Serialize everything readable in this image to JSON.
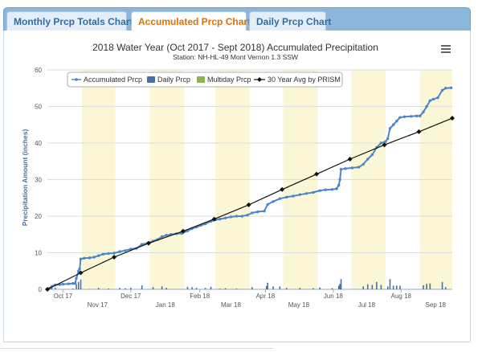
{
  "tabs": [
    {
      "label": "Monthly Prcp Totals Chart",
      "active": false
    },
    {
      "label": "Accumulated Prcp Chart",
      "active": true
    },
    {
      "label": "Daily Prcp Chart",
      "active": false
    }
  ],
  "colors": {
    "accumulated": "#4a86c8",
    "daily": "#4470a8",
    "multiday": "#8db44a",
    "avg": "#111111",
    "band": "#fbf7d6",
    "active_tab": "#e07000"
  },
  "menu_icon": "hamburger-menu-icon",
  "chart_data": {
    "type": "line",
    "title": "2018 Water Year (Oct 2017 - Sept 2018) Accumulated Precipitation",
    "subtitle": "Station: NH-HL-49 Mont Vernon 1.3 SSW",
    "ylabel": "Precipitation Amount (inches)",
    "xlabel": "",
    "ylim": [
      0,
      60
    ],
    "yticks": [
      0,
      10,
      20,
      30,
      40,
      50,
      60
    ],
    "grid": true,
    "legend_position": "top-left",
    "x_domain": [
      "2017-10-01",
      "2018-09-30"
    ],
    "x_ticks_row1": [
      {
        "date": "2017-10-15",
        "label": "Oct 17"
      },
      {
        "date": "2017-12-15",
        "label": "Dec 17"
      },
      {
        "date": "2018-02-15",
        "label": "Feb 18"
      },
      {
        "date": "2018-04-15",
        "label": "Apr 18"
      },
      {
        "date": "2018-06-15",
        "label": "Jun 18"
      },
      {
        "date": "2018-08-15",
        "label": "Aug 18"
      }
    ],
    "x_ticks_row2": [
      {
        "date": "2017-11-15",
        "label": "Nov 17"
      },
      {
        "date": "2018-01-15",
        "label": "Jan 18"
      },
      {
        "date": "2018-03-15",
        "label": "Mar 18"
      },
      {
        "date": "2018-05-15",
        "label": "May 18"
      },
      {
        "date": "2018-07-15",
        "label": "Jul 18"
      },
      {
        "date": "2018-09-15",
        "label": "Sep 18"
      }
    ],
    "shaded_months": [
      [
        "2017-11-01",
        "2017-12-01"
      ],
      [
        "2018-01-01",
        "2018-02-01"
      ],
      [
        "2018-03-01",
        "2018-04-01"
      ],
      [
        "2018-05-01",
        "2018-06-01"
      ],
      [
        "2018-07-01",
        "2018-08-01"
      ],
      [
        "2018-09-01",
        "2018-09-30"
      ]
    ],
    "legend": [
      "Accumulated Prcp",
      "Daily Prcp",
      "Multiday Prcp",
      "30 Year Avg by PRISM"
    ],
    "series": [
      {
        "name": "Accumulated Prcp",
        "points": [
          [
            "2017-10-01",
            0.0
          ],
          [
            "2017-10-03",
            0.3
          ],
          [
            "2017-10-05",
            0.8
          ],
          [
            "2017-10-08",
            1.2
          ],
          [
            "2017-10-12",
            1.3
          ],
          [
            "2017-10-15",
            1.4
          ],
          [
            "2017-10-20",
            1.5
          ],
          [
            "2017-10-24",
            1.6
          ],
          [
            "2017-10-26",
            1.6
          ],
          [
            "2017-10-27",
            3.0
          ],
          [
            "2017-10-29",
            5.0
          ],
          [
            "2017-10-30",
            5.6
          ],
          [
            "2017-10-31",
            8.3
          ],
          [
            "2017-11-03",
            8.5
          ],
          [
            "2017-11-08",
            8.6
          ],
          [
            "2017-11-12",
            8.8
          ],
          [
            "2017-11-16",
            9.2
          ],
          [
            "2017-11-20",
            9.6
          ],
          [
            "2017-11-25",
            9.8
          ],
          [
            "2017-11-30",
            9.9
          ],
          [
            "2017-12-05",
            10.3
          ],
          [
            "2017-12-10",
            10.6
          ],
          [
            "2017-12-15",
            11.0
          ],
          [
            "2017-12-20",
            11.2
          ],
          [
            "2017-12-25",
            12.3
          ],
          [
            "2017-12-30",
            12.6
          ],
          [
            "2018-01-04",
            13.2
          ],
          [
            "2018-01-08",
            13.6
          ],
          [
            "2018-01-12",
            14.4
          ],
          [
            "2018-01-16",
            14.8
          ],
          [
            "2018-01-20",
            15.0
          ],
          [
            "2018-01-25",
            15.2
          ],
          [
            "2018-01-30",
            15.3
          ],
          [
            "2018-02-04",
            16.0
          ],
          [
            "2018-02-08",
            16.6
          ],
          [
            "2018-02-12",
            17.0
          ],
          [
            "2018-02-16",
            17.5
          ],
          [
            "2018-02-20",
            17.9
          ],
          [
            "2018-02-25",
            18.6
          ],
          [
            "2018-03-01",
            19.0
          ],
          [
            "2018-03-05",
            19.2
          ],
          [
            "2018-03-10",
            19.5
          ],
          [
            "2018-03-15",
            19.8
          ],
          [
            "2018-03-20",
            20.0
          ],
          [
            "2018-03-25",
            20.0
          ],
          [
            "2018-03-30",
            20.3
          ],
          [
            "2018-04-03",
            20.9
          ],
          [
            "2018-04-08",
            21.2
          ],
          [
            "2018-04-14",
            21.4
          ],
          [
            "2018-04-17",
            23.2
          ],
          [
            "2018-04-22",
            24.0
          ],
          [
            "2018-04-28",
            24.8
          ],
          [
            "2018-05-04",
            25.2
          ],
          [
            "2018-05-10",
            25.5
          ],
          [
            "2018-05-16",
            25.9
          ],
          [
            "2018-05-22",
            26.2
          ],
          [
            "2018-05-28",
            26.5
          ],
          [
            "2018-06-03",
            27.0
          ],
          [
            "2018-06-08",
            27.2
          ],
          [
            "2018-06-14",
            27.3
          ],
          [
            "2018-06-18",
            27.5
          ],
          [
            "2018-06-20",
            28.5
          ],
          [
            "2018-06-21",
            30.0
          ],
          [
            "2018-06-22",
            32.8
          ],
          [
            "2018-06-26",
            33.0
          ],
          [
            "2018-07-02",
            33.2
          ],
          [
            "2018-07-08",
            33.4
          ],
          [
            "2018-07-12",
            34.2
          ],
          [
            "2018-07-16",
            35.6
          ],
          [
            "2018-07-20",
            36.8
          ],
          [
            "2018-07-24",
            38.8
          ],
          [
            "2018-07-28",
            40.0
          ],
          [
            "2018-08-01",
            40.4
          ],
          [
            "2018-08-03",
            41.2
          ],
          [
            "2018-08-05",
            44.0
          ],
          [
            "2018-08-08",
            45.0
          ],
          [
            "2018-08-11",
            46.0
          ],
          [
            "2018-08-14",
            47.0
          ],
          [
            "2018-08-18",
            47.2
          ],
          [
            "2018-08-24",
            47.3
          ],
          [
            "2018-08-29",
            47.4
          ],
          [
            "2018-09-01",
            47.4
          ],
          [
            "2018-09-04",
            48.5
          ],
          [
            "2018-09-07",
            50.0
          ],
          [
            "2018-09-10",
            51.6
          ],
          [
            "2018-09-13",
            52.0
          ],
          [
            "2018-09-17",
            52.4
          ],
          [
            "2018-09-21",
            54.4
          ],
          [
            "2018-09-24",
            55.0
          ],
          [
            "2018-09-29",
            55.1
          ]
        ]
      },
      {
        "name": "Daily Prcp",
        "points": [
          [
            "2017-10-03",
            0.3
          ],
          [
            "2017-10-05",
            0.5
          ],
          [
            "2017-10-08",
            0.4
          ],
          [
            "2017-10-24",
            0.2
          ],
          [
            "2017-10-27",
            1.4
          ],
          [
            "2017-10-29",
            2.0
          ],
          [
            "2017-10-31",
            2.7
          ],
          [
            "2017-11-08",
            0.1
          ],
          [
            "2017-11-16",
            0.4
          ],
          [
            "2017-11-25",
            0.2
          ],
          [
            "2017-12-05",
            0.4
          ],
          [
            "2017-12-10",
            0.3
          ],
          [
            "2017-12-15",
            0.4
          ],
          [
            "2017-12-25",
            1.1
          ],
          [
            "2018-01-04",
            0.6
          ],
          [
            "2018-01-12",
            0.8
          ],
          [
            "2018-01-16",
            0.4
          ],
          [
            "2018-02-04",
            0.7
          ],
          [
            "2018-02-08",
            0.6
          ],
          [
            "2018-02-12",
            0.4
          ],
          [
            "2018-02-20",
            0.4
          ],
          [
            "2018-02-25",
            0.7
          ],
          [
            "2018-03-05",
            0.2
          ],
          [
            "2018-03-10",
            0.3
          ],
          [
            "2018-03-20",
            0.2
          ],
          [
            "2018-04-03",
            0.6
          ],
          [
            "2018-04-16",
            0.9
          ],
          [
            "2018-04-17",
            1.8
          ],
          [
            "2018-04-22",
            0.8
          ],
          [
            "2018-04-28",
            0.8
          ],
          [
            "2018-05-04",
            0.4
          ],
          [
            "2018-05-16",
            0.4
          ],
          [
            "2018-05-28",
            0.3
          ],
          [
            "2018-06-03",
            0.5
          ],
          [
            "2018-06-14",
            0.3
          ],
          [
            "2018-06-20",
            1.0
          ],
          [
            "2018-06-21",
            1.5
          ],
          [
            "2018-06-22",
            2.8
          ],
          [
            "2018-07-12",
            0.8
          ],
          [
            "2018-07-16",
            1.4
          ],
          [
            "2018-07-20",
            1.2
          ],
          [
            "2018-07-24",
            2.0
          ],
          [
            "2018-07-28",
            1.2
          ],
          [
            "2018-08-03",
            0.8
          ],
          [
            "2018-08-05",
            2.8
          ],
          [
            "2018-08-08",
            1.0
          ],
          [
            "2018-08-11",
            1.0
          ],
          [
            "2018-08-14",
            1.0
          ],
          [
            "2018-09-04",
            1.1
          ],
          [
            "2018-09-07",
            1.5
          ],
          [
            "2018-09-10",
            1.6
          ],
          [
            "2018-09-21",
            2.0
          ],
          [
            "2018-09-24",
            0.6
          ]
        ]
      },
      {
        "name": "30 Year Avg by PRISM",
        "points": [
          [
            "2017-10-01",
            0.0
          ],
          [
            "2017-10-31",
            4.5
          ],
          [
            "2017-11-30",
            8.8
          ],
          [
            "2017-12-31",
            12.6
          ],
          [
            "2018-01-31",
            15.9
          ],
          [
            "2018-02-28",
            19.2
          ],
          [
            "2018-03-31",
            23.1
          ],
          [
            "2018-04-30",
            27.3
          ],
          [
            "2018-05-31",
            31.5
          ],
          [
            "2018-06-30",
            35.6
          ],
          [
            "2018-07-31",
            39.5
          ],
          [
            "2018-08-31",
            43.1
          ],
          [
            "2018-09-30",
            46.8
          ]
        ]
      }
    ]
  }
}
